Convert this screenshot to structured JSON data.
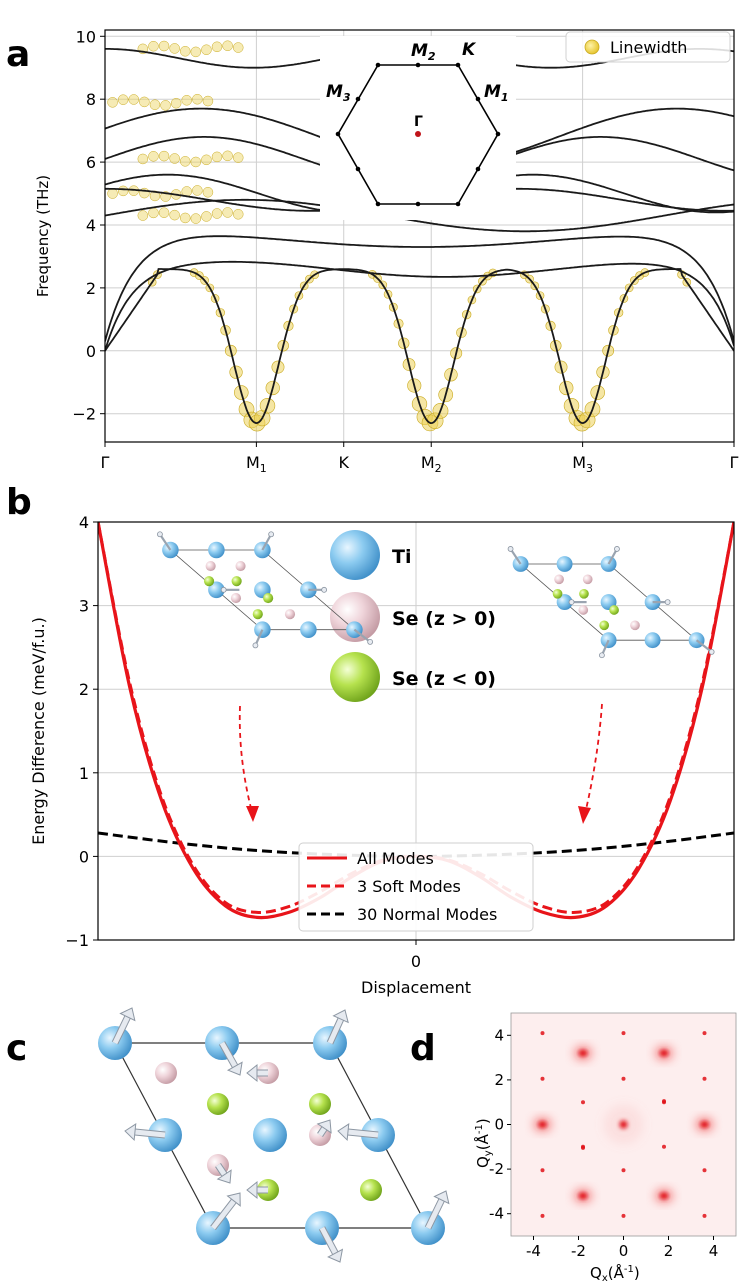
{
  "panels": {
    "a": {
      "letter": "a"
    },
    "b": {
      "letter": "b"
    },
    "c": {
      "letter": "c"
    },
    "d": {
      "letter": "d"
    }
  },
  "chart_data": [
    {
      "panel": "a",
      "type": "line",
      "ylabel": "Frequency (THz)",
      "ylim": [
        -2.9,
        10.2
      ],
      "yticks": [
        -2,
        0,
        2,
        4,
        6,
        8,
        10
      ],
      "ytick_labels": [
        "−2",
        "0",
        "2",
        "4",
        "6",
        "8",
        "10"
      ],
      "x_path": [
        {
          "label": "Γ",
          "pos": 0
        },
        {
          "label": "M",
          "sub": "1",
          "pos": 1
        },
        {
          "label": "K",
          "pos": 1.577
        },
        {
          "label": "M",
          "sub": "2",
          "pos": 2.155
        },
        {
          "label": "M",
          "sub": "3",
          "pos": 3.155
        },
        {
          "label": "Γ",
          "pos": 4.155
        }
      ],
      "grid": true,
      "legend": {
        "position": "top-right",
        "entries": [
          "Linewidth"
        ]
      },
      "marker_color": "#e8c832",
      "inset": {
        "kind": "brillouin-zone-hexagon",
        "labels": [
          {
            "main": "M",
            "sub": "2"
          },
          {
            "main": "K",
            "sub": ""
          },
          {
            "main": "M",
            "sub": "3"
          },
          {
            "main": "M",
            "sub": "1"
          },
          {
            "main": "Γ",
            "sub": ""
          }
        ]
      }
    },
    {
      "panel": "b",
      "type": "line",
      "ylabel": "Energy Difference (meV/f.u.)",
      "xlabel": "Displacement",
      "ylim": [
        -1,
        4
      ],
      "yticks": [
        -1,
        0,
        1,
        2,
        3,
        4
      ],
      "ytick_labels": [
        "−1",
        "0",
        "1",
        "2",
        "3",
        "4"
      ],
      "xtick_labels": [
        "0"
      ],
      "grid": true,
      "series": [
        {
          "name": "All Modes",
          "style": "solid",
          "color": "#e8141a",
          "x": [
            -1.0,
            -0.9,
            -0.8,
            -0.7,
            -0.6,
            -0.5,
            -0.4,
            -0.3,
            -0.2,
            -0.1,
            0,
            0.1,
            0.2,
            0.3,
            0.4,
            0.5,
            0.6,
            0.7,
            0.8,
            0.9,
            1.0
          ],
          "y": [
            4.0,
            2.02,
            0.67,
            -0.15,
            -0.59,
            -0.73,
            -0.67,
            -0.49,
            -0.24,
            -0.05,
            0.0,
            -0.05,
            -0.24,
            -0.49,
            -0.67,
            -0.73,
            -0.59,
            -0.15,
            0.67,
            2.02,
            4.0
          ]
        },
        {
          "name": "3 Soft Modes",
          "style": "dashed",
          "color": "#e8141a",
          "x": [
            -1.0,
            -0.9,
            -0.8,
            -0.7,
            -0.6,
            -0.5,
            -0.4,
            -0.3,
            -0.2,
            -0.1,
            0,
            0.1,
            0.2,
            0.3,
            0.4,
            0.5,
            0.6,
            0.7,
            0.8,
            0.9,
            1.0
          ],
          "y": [
            4.0,
            2.07,
            0.72,
            -0.11,
            -0.55,
            -0.67,
            -0.6,
            -0.42,
            -0.2,
            -0.04,
            0.0,
            -0.04,
            -0.2,
            -0.42,
            -0.6,
            -0.67,
            -0.55,
            -0.11,
            0.72,
            2.07,
            4.0
          ]
        },
        {
          "name": "30 Normal Modes",
          "style": "dashed",
          "color": "#000000",
          "x": [
            -1.0,
            -0.75,
            -0.5,
            -0.25,
            0,
            0.25,
            0.5,
            0.75,
            1.0
          ],
          "y": [
            0.28,
            0.16,
            0.07,
            0.02,
            0.0,
            0.02,
            0.07,
            0.16,
            0.28
          ]
        }
      ],
      "atom_legend": [
        {
          "label": "Ti",
          "color": "#6fb8e8"
        },
        {
          "label": "Se (z > 0)",
          "color": "#e8c4cc"
        },
        {
          "label": "Se (z < 0)",
          "color": "#9ed63a"
        }
      ]
    },
    {
      "panel": "d",
      "type": "heatmap",
      "xlabel": "Qx(Å⁻¹)",
      "ylabel": "Qy(Å⁻¹)",
      "xlim": [
        -5,
        5
      ],
      "ylim": [
        -5,
        5
      ],
      "xticks": [
        -4,
        -2,
        0,
        2,
        4
      ],
      "yticks": [
        -4,
        -2,
        0,
        2,
        4
      ],
      "xtick_labels": [
        "-4",
        "-2",
        "0",
        "2",
        "4"
      ],
      "ytick_labels": [
        "-4",
        "-2",
        "0",
        "2",
        "4"
      ],
      "colormap": "white-to-red"
    }
  ]
}
